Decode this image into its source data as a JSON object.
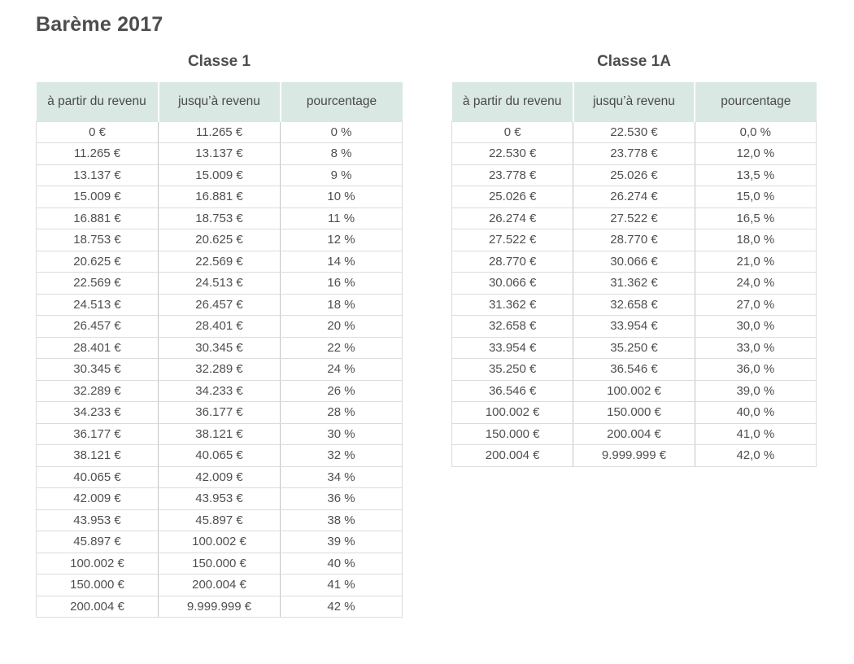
{
  "page": {
    "title": "Barème 2017"
  },
  "colors": {
    "header_bg": "#d9e8e2",
    "title_text": "#4d4d4d",
    "body_text": "#4f4f4f",
    "border_light": "#dcdcdc",
    "border_mid": "#bfc6c3"
  },
  "columns": [
    "à partir du revenu",
    "jusqu’à revenu",
    "pourcentage"
  ],
  "tables": [
    {
      "title": "Classe 1",
      "rows": [
        [
          "0 €",
          "11.265 €",
          "0 %"
        ],
        [
          "11.265 €",
          "13.137 €",
          "8 %"
        ],
        [
          "13.137 €",
          "15.009 €",
          "9 %"
        ],
        [
          "15.009 €",
          "16.881 €",
          "10 %"
        ],
        [
          "16.881 €",
          "18.753 €",
          "11 %"
        ],
        [
          "18.753 €",
          "20.625 €",
          "12 %"
        ],
        [
          "20.625 €",
          "22.569 €",
          "14 %"
        ],
        [
          "22.569 €",
          "24.513 €",
          "16 %"
        ],
        [
          "24.513 €",
          "26.457 €",
          "18 %"
        ],
        [
          "26.457 €",
          "28.401 €",
          "20 %"
        ],
        [
          "28.401 €",
          "30.345 €",
          "22 %"
        ],
        [
          "30.345 €",
          "32.289 €",
          "24 %"
        ],
        [
          "32.289 €",
          "34.233 €",
          "26 %"
        ],
        [
          "34.233 €",
          "36.177 €",
          "28 %"
        ],
        [
          "36.177 €",
          "38.121 €",
          "30 %"
        ],
        [
          "38.121 €",
          "40.065 €",
          "32 %"
        ],
        [
          "40.065 €",
          "42.009 €",
          "34 %"
        ],
        [
          "42.009 €",
          "43.953 €",
          "36 %"
        ],
        [
          "43.953 €",
          "45.897 €",
          "38 %"
        ],
        [
          "45.897 €",
          "100.002 €",
          "39 %"
        ],
        [
          "100.002 €",
          "150.000 €",
          "40 %"
        ],
        [
          "150.000 €",
          "200.004 €",
          "41 %"
        ],
        [
          "200.004 €",
          "9.999.999 €",
          "42 %"
        ]
      ]
    },
    {
      "title": "Classe 1A",
      "rows": [
        [
          "0 €",
          "22.530 €",
          "0,0 %"
        ],
        [
          "22.530 €",
          "23.778 €",
          "12,0 %"
        ],
        [
          "23.778 €",
          "25.026 €",
          "13,5 %"
        ],
        [
          "25.026 €",
          "26.274 €",
          "15,0 %"
        ],
        [
          "26.274 €",
          "27.522 €",
          "16,5 %"
        ],
        [
          "27.522 €",
          "28.770 €",
          "18,0 %"
        ],
        [
          "28.770 €",
          "30.066 €",
          "21,0 %"
        ],
        [
          "30.066 €",
          "31.362 €",
          "24,0 %"
        ],
        [
          "31.362 €",
          "32.658 €",
          "27,0 %"
        ],
        [
          "32.658 €",
          "33.954 €",
          "30,0 %"
        ],
        [
          "33.954 €",
          "35.250 €",
          "33,0 %"
        ],
        [
          "35.250 €",
          "36.546 €",
          "36,0 %"
        ],
        [
          "36.546 €",
          "100.002 €",
          "39,0 %"
        ],
        [
          "100.002 €",
          "150.000 €",
          "40,0 %"
        ],
        [
          "150.000 €",
          "200.004 €",
          "41,0 %"
        ],
        [
          "200.004 €",
          "9.999.999 €",
          "42,0 %"
        ]
      ]
    }
  ]
}
